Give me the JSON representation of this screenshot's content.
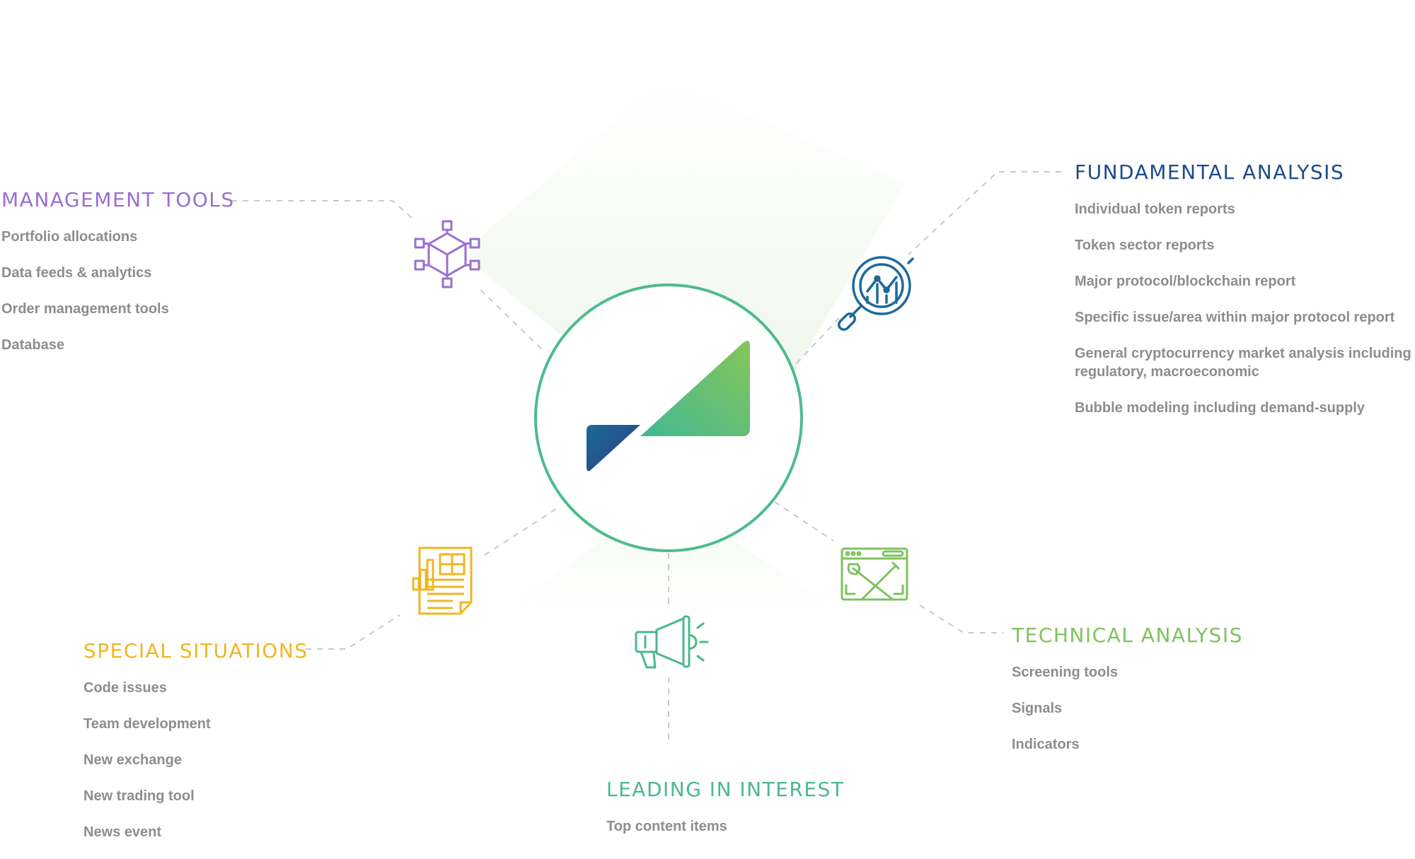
{
  "sections": {
    "management": {
      "title": "MANAGEMENT TOOLS",
      "color": "#9a6fd0",
      "icon": "network-cube-icon",
      "items": [
        "Portfolio allocations",
        "Data feeds & analytics",
        "Order management tools",
        "Database"
      ]
    },
    "fundamental": {
      "title": "FUNDAMENTAL ANALYSIS",
      "color": "#1d4b8a",
      "icon": "magnifier-chart-icon",
      "items": [
        "Individual token reports",
        "Token sector reports",
        "Major protocol/blockchain report",
        "Specific issue/area within major protocol report",
        "General cryptocurrency market analysis including regulatory, macroeconomic",
        "Bubble modeling including demand-supply"
      ]
    },
    "technical": {
      "title": "TECHNICAL ANALYSIS",
      "color": "#7ec25d",
      "icon": "browser-tools-icon",
      "items": [
        "Screening tools",
        "Signals",
        "Indicators"
      ]
    },
    "special": {
      "title": "SPECIAL SITUATIONS",
      "color": "#f1b522",
      "icon": "newspaper-chart-icon",
      "items": [
        "Code issues",
        "Team development",
        "New exchange",
        "New trading tool",
        "News event"
      ]
    },
    "leading": {
      "title": "LEADING IN INTEREST",
      "color": "#49b98d",
      "icon": "megaphone-icon",
      "items": [
        "Top content items"
      ]
    }
  },
  "center": {
    "icon": "brand-logo",
    "ring_color": "#4dbb8e",
    "logo_colors": [
      "#1d4b8a",
      "#4dbb8e",
      "#86c55a"
    ]
  },
  "connector_color": "#c9c9c9"
}
